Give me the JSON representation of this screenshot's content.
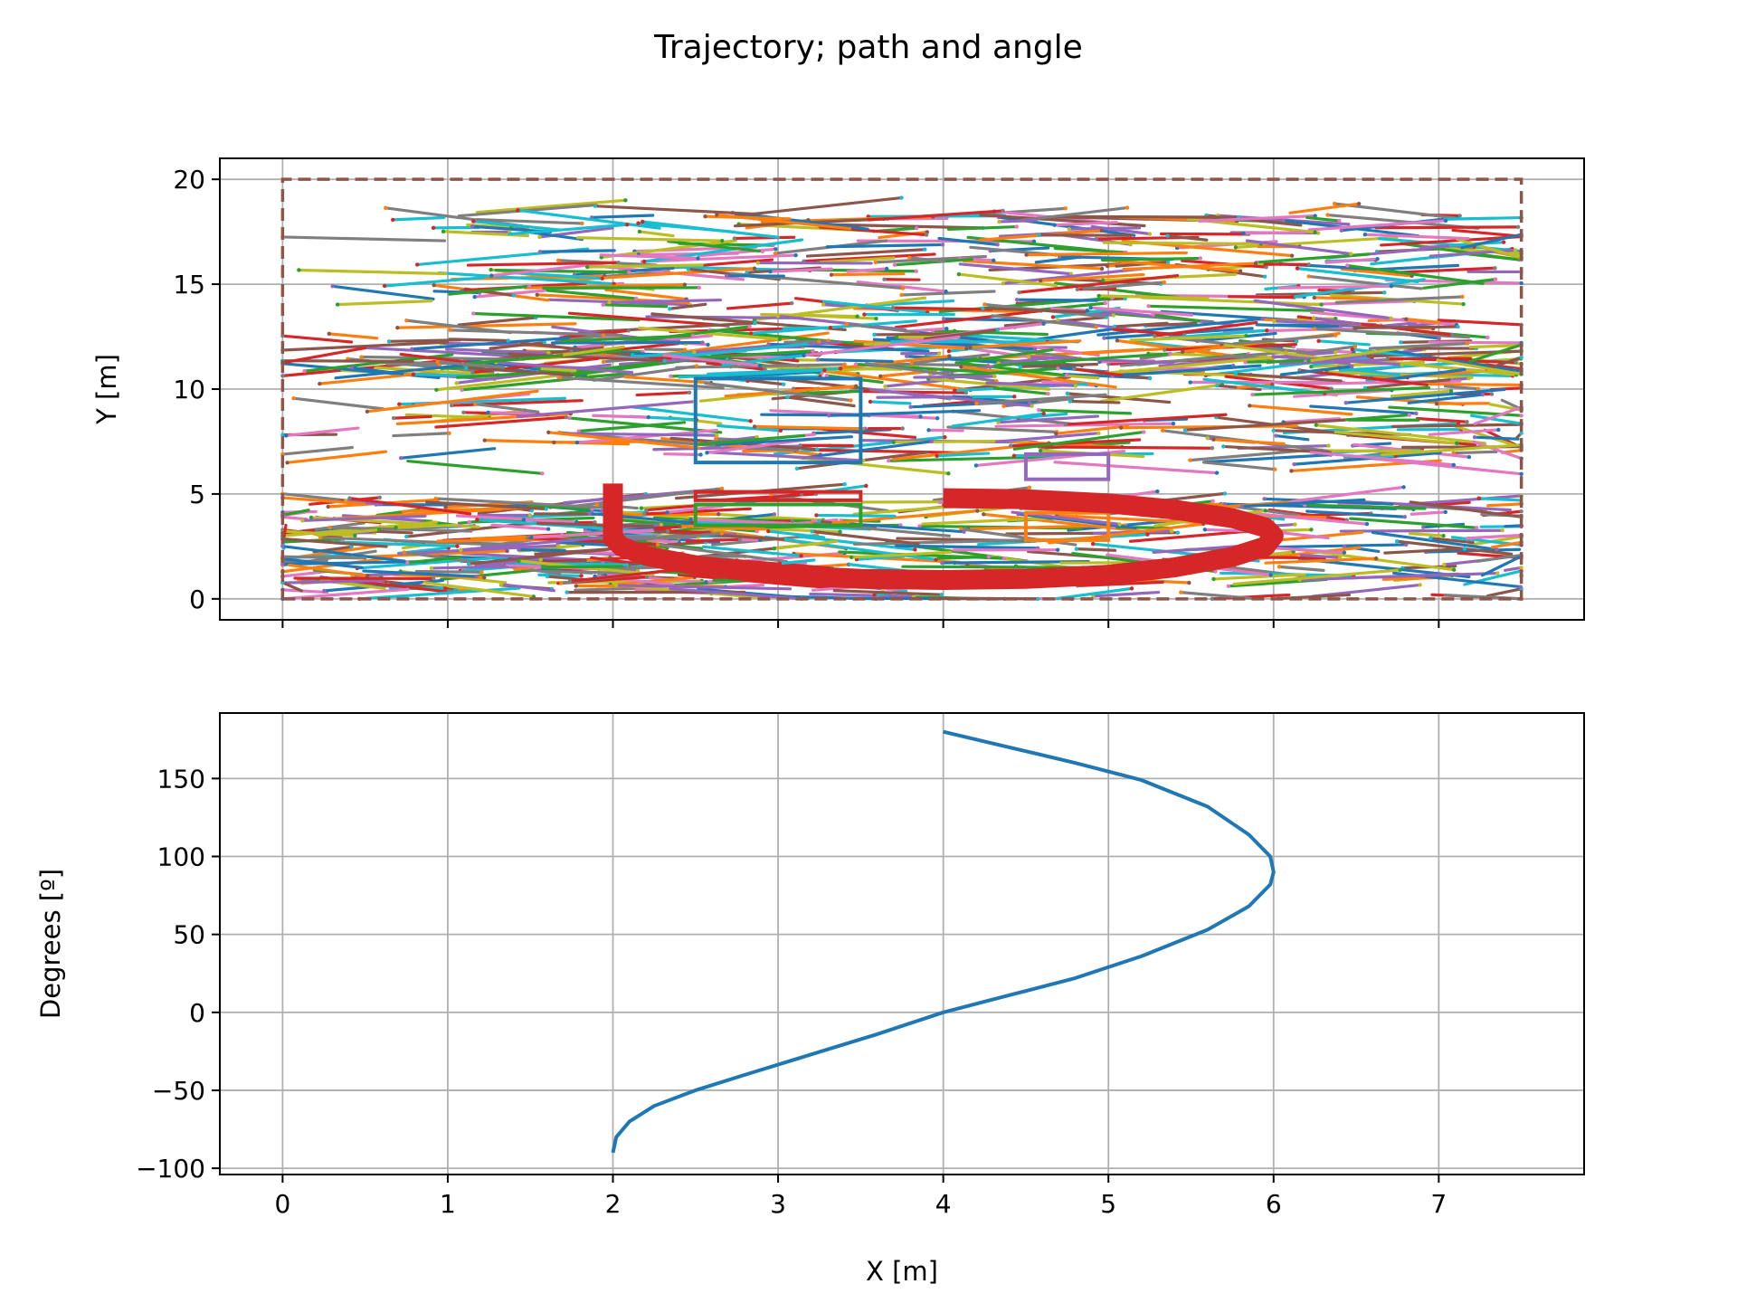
{
  "figure": {
    "title": "Trajectory; path and angle"
  },
  "chart_data": [
    {
      "type": "line",
      "name": "path",
      "xlabel": "",
      "ylabel": "Y [m]",
      "xlim": [
        -0.38,
        7.88
      ],
      "ylim": [
        -1.0,
        21.0
      ],
      "xticks": [
        0,
        1,
        2,
        3,
        4,
        5,
        6,
        7
      ],
      "yticks": [
        0,
        5,
        10,
        15,
        20
      ],
      "ytick_labels": [
        "0",
        "5",
        "10",
        "15",
        "20"
      ],
      "x_tick_labels_visible": false,
      "grid": true,
      "boundary": {
        "x": [
          0,
          7.5,
          7.5,
          0,
          0
        ],
        "y": [
          0,
          0,
          20,
          20,
          0
        ],
        "color": "#8c564b",
        "style": "dashed"
      },
      "obstacles": [
        {
          "x": [
            2.5,
            3.5
          ],
          "y": [
            6.5,
            10.5
          ],
          "color": "#1f77b4"
        },
        {
          "x": [
            2.5,
            3.5
          ],
          "y": [
            4.7,
            5.1
          ],
          "color": "#d62728"
        },
        {
          "x": [
            2.5,
            3.5
          ],
          "y": [
            3.5,
            4.5
          ],
          "color": "#2ca02c"
        },
        {
          "x": [
            4.5,
            5.0
          ],
          "y": [
            5.7,
            6.9
          ],
          "color": "#9467bd"
        },
        {
          "x": [
            4.5,
            5.0
          ],
          "y": [
            2.8,
            4.1
          ],
          "color": "#ff7f0e"
        }
      ],
      "planned_path": {
        "color": "#d62728",
        "x": [
          2.0,
          2.0,
          2.0,
          2.05,
          2.2,
          2.5,
          3.0,
          3.5,
          4.0,
          4.5,
          5.0,
          5.4,
          5.75,
          5.95,
          6.0,
          5.95,
          5.75,
          5.4,
          5.0,
          4.5,
          4.0
        ],
        "y": [
          5.5,
          3.5,
          2.9,
          2.5,
          2.05,
          1.6,
          1.15,
          0.95,
          0.9,
          0.95,
          1.15,
          1.5,
          2.0,
          2.5,
          3.0,
          3.4,
          3.85,
          4.25,
          4.55,
          4.75,
          4.8
        ]
      },
      "explored_tree_colors": [
        "#1f77b4",
        "#ff7f0e",
        "#2ca02c",
        "#d62728",
        "#9467bd",
        "#8c564b",
        "#e377c2",
        "#7f7f7f",
        "#bcbd22",
        "#17becf"
      ],
      "explored_regions": [
        {
          "x": [
            0.9,
            7.3
          ],
          "y": [
            10.5,
            18.5
          ],
          "count": 420
        },
        {
          "x": [
            0.3,
            7.5
          ],
          "y": [
            6.5,
            12.5
          ],
          "count": 300
        },
        {
          "x": [
            0.0,
            2.7
          ],
          "y": [
            0.3,
            4.8
          ],
          "count": 180
        },
        {
          "x": [
            2.0,
            7.5
          ],
          "y": [
            0.0,
            4.8
          ],
          "count": 240
        }
      ]
    },
    {
      "type": "line",
      "name": "angle",
      "xlabel": "X [m]",
      "ylabel": "Degrees [º]",
      "xlim": [
        -0.38,
        7.88
      ],
      "ylim": [
        -104,
        192
      ],
      "xticks": [
        0,
        1,
        2,
        3,
        4,
        5,
        6,
        7
      ],
      "xtick_labels": [
        "0",
        "1",
        "2",
        "3",
        "4",
        "5",
        "6",
        "7"
      ],
      "yticks": [
        -100,
        -50,
        0,
        50,
        100,
        150
      ],
      "ytick_labels": [
        "−100",
        "−50",
        "0",
        "50",
        "100",
        "150"
      ],
      "grid": true,
      "series": [
        {
          "color": "#1f77b4",
          "x": [
            2.0,
            2.02,
            2.1,
            2.25,
            2.5,
            2.8,
            3.2,
            3.6,
            4.0,
            4.4,
            4.8,
            5.2,
            5.6,
            5.85,
            5.98,
            6.0,
            5.98,
            5.85,
            5.6,
            5.2,
            4.8,
            4.4,
            4.0
          ],
          "y": [
            -90,
            -80,
            -70,
            -60,
            -50,
            -40,
            -27,
            -14,
            0,
            11,
            22,
            36,
            53,
            68,
            82,
            90,
            100,
            114,
            132,
            149,
            160,
            170,
            180
          ]
        }
      ]
    }
  ]
}
